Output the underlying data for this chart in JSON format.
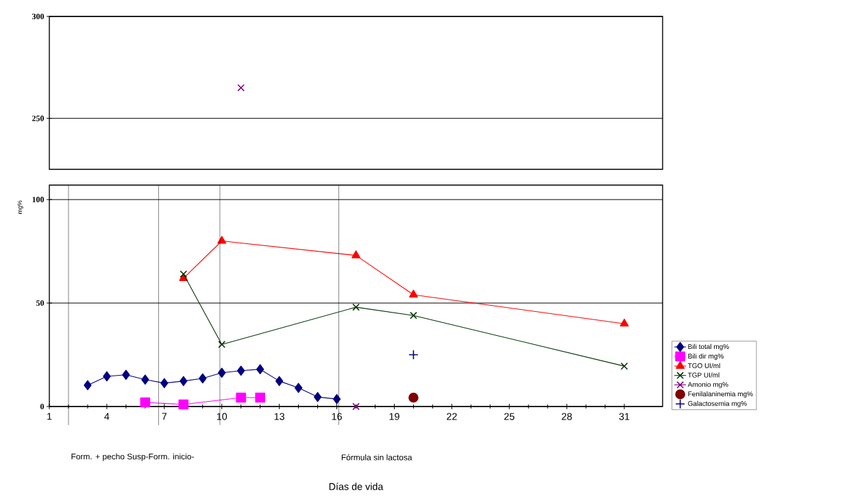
{
  "chart_data": [
    {
      "type": "line",
      "xlim": [
        1,
        33
      ],
      "ylim": [
        225,
        300
      ],
      "yticks": [
        250,
        300
      ],
      "grid": "y",
      "tick_labels": "y",
      "series": [
        {
          "color": "#800080",
          "marker": "cross",
          "x": [
            11
          ],
          "values": [
            265
          ]
        }
      ]
    },
    {
      "type": "line",
      "xlim": [
        1,
        33
      ],
      "ylim": [
        0,
        107
      ],
      "xticks": [
        1,
        4,
        7,
        10,
        13,
        16,
        19,
        22,
        25,
        28,
        31
      ],
      "yticks": [
        0,
        50,
        100
      ],
      "grid": "y",
      "ylabel": "mg%",
      "xlabel": "Días de vida",
      "legend": "right",
      "ref_lines": [
        {
          "axis": "x",
          "value": 2
        },
        {
          "axis": "x",
          "value": 6.7
        },
        {
          "axis": "x",
          "value": 9.9
        },
        {
          "axis": "x",
          "value": 16.1
        }
      ],
      "annotations": [
        "Form. + pecho Susp-Form. inicio-",
        "Fórmula sin lactosa"
      ],
      "series": [
        {
          "name": "Bili total mg%",
          "color": "#000080",
          "marker": "diamond",
          "x": [
            3,
            4,
            5,
            6,
            7,
            8,
            9,
            10,
            11,
            12,
            13,
            14,
            15,
            16
          ],
          "values": [
            10.3,
            14.6,
            15.3,
            13,
            11.3,
            12.3,
            13.6,
            16.3,
            17.3,
            18,
            12.3,
            9,
            4.6,
            3.6
          ]
        },
        {
          "name": "Bili dir mg%",
          "color": "#ff00ff",
          "marker": "square",
          "x": [
            6,
            8,
            11,
            12
          ],
          "values": [
            2,
            1,
            4.3,
            4.3
          ]
        },
        {
          "name": "TGO UI/ml",
          "color": "#ff0000",
          "marker": "triangle",
          "x": [
            8,
            10,
            17,
            20,
            31
          ],
          "values": [
            62,
            80,
            73,
            54,
            40
          ]
        },
        {
          "name": "TGP UI/ml",
          "color": "#003300",
          "marker": "cross",
          "x": [
            8,
            10,
            17,
            20,
            31
          ],
          "values": [
            64,
            30,
            48,
            44,
            19.5
          ]
        },
        {
          "name": "Amonio mg%",
          "color": "#800080",
          "marker": "cross",
          "x": [
            17
          ],
          "values": [
            0
          ]
        },
        {
          "name": "Fenilalaninemia mg%",
          "type": "scatter",
          "color": "#800000",
          "marker": "circle",
          "x": [
            20
          ],
          "values": [
            4.3
          ]
        },
        {
          "name": "Galactosemia mg%",
          "type": "scatter",
          "color": "#000080",
          "marker": "plus",
          "x": [
            20
          ],
          "values": [
            25
          ]
        }
      ]
    }
  ]
}
